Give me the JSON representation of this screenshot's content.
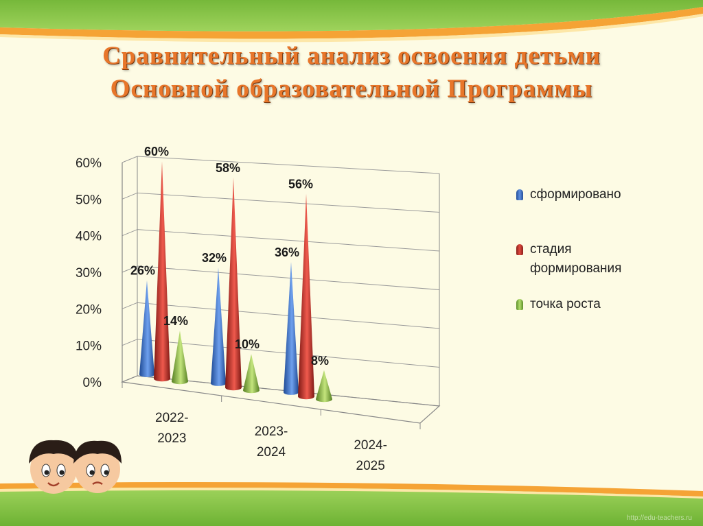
{
  "slide": {
    "title_line1": "Сравнительный анализ освоения детьми",
    "title_line2": "Основной образовательной Программы",
    "watermark": "http://edu-teachers.ru",
    "colors": {
      "band_green": "#82c341",
      "band_orange": "#f39a2b",
      "background": "#fdfbe4",
      "title": "#e8762a"
    }
  },
  "chart_data": {
    "type": "bar",
    "title": "",
    "categories": [
      "2022-2023",
      "2023-2024",
      "2024-2025"
    ],
    "category_lines": [
      [
        "2022-",
        "2023"
      ],
      [
        "2023-",
        "2024"
      ],
      [
        "2024-",
        "2025"
      ]
    ],
    "series": [
      {
        "name": "сформировано",
        "values": [
          26,
          32,
          36
        ],
        "labels": [
          "26%",
          "32%",
          "36%"
        ],
        "color": "#3a6fc4"
      },
      {
        "name": "стадия формирования",
        "values": [
          60,
          58,
          56
        ],
        "labels": [
          "60%",
          "58%",
          "56%"
        ],
        "color": "#c0312b"
      },
      {
        "name": "точка роста",
        "values": [
          14,
          10,
          8
        ],
        "labels": [
          "14%",
          "10%",
          "8%"
        ],
        "color": "#8fc24a"
      }
    ],
    "legend_lines": [
      [
        "сформировано"
      ],
      [
        "стадия",
        "формирования"
      ],
      [
        "точка роста"
      ]
    ],
    "y_ticks": [
      "0%",
      "10%",
      "20%",
      "30%",
      "40%",
      "50%",
      "60%"
    ],
    "ylim": [
      0,
      60
    ],
    "grid": true,
    "legend": "right",
    "shape": "cone-3d"
  }
}
